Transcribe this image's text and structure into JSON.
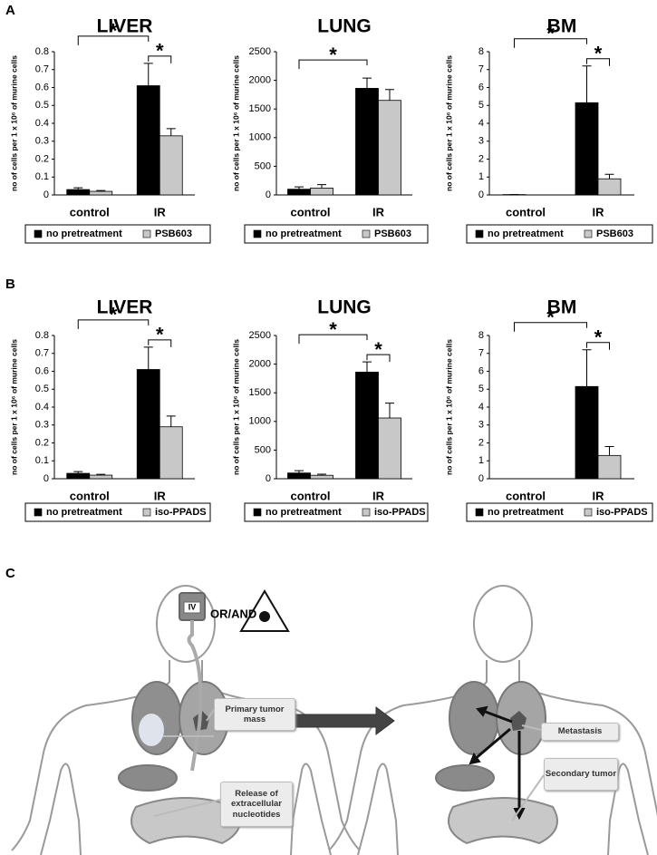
{
  "panels": [
    "A",
    "B",
    "C"
  ],
  "chart_data": [
    {
      "type": "bar",
      "title": "LIVER",
      "y_label": "no of cells per 1 x 10⁶ of murine cells",
      "categories": [
        "control",
        "IR"
      ],
      "series": [
        {
          "name": "no pretreatment",
          "color": "#000000",
          "values": [
            0.03,
            0.61
          ],
          "errors": [
            0.01,
            0.125
          ]
        },
        {
          "name": "PSB603",
          "color": "#c8c8c8",
          "values": [
            0.02,
            0.33
          ],
          "errors": [
            0.005,
            0.04
          ]
        }
      ],
      "ylim": [
        0,
        0.8
      ],
      "yticks": [
        0,
        0.1,
        0.2,
        0.3,
        0.4,
        0.5,
        0.6,
        0.7,
        0.8
      ],
      "annotations": [
        "*",
        "*"
      ]
    },
    {
      "type": "bar",
      "title": "LUNG",
      "y_label": "no of cells per 1 x 10⁶ of murine cells",
      "categories": [
        "control",
        "IR"
      ],
      "series": [
        {
          "name": "no pretreatment",
          "color": "#000000",
          "values": [
            100,
            1860
          ],
          "errors": [
            40,
            180
          ]
        },
        {
          "name": "PSB603",
          "color": "#c8c8c8",
          "values": [
            120,
            1650
          ],
          "errors": [
            60,
            190
          ]
        }
      ],
      "ylim": [
        0,
        2500
      ],
      "yticks": [
        0,
        500,
        1000,
        1500,
        2000,
        2500
      ],
      "annotations": [
        "*"
      ]
    },
    {
      "type": "bar",
      "title": "BM",
      "y_label": "no of cells per 1 x 10⁶ of murine cells",
      "categories": [
        "control",
        "IR"
      ],
      "series": [
        {
          "name": "no pretreatment",
          "color": "#000000",
          "values": [
            0.02,
            5.15
          ],
          "errors": [
            0,
            2.05
          ]
        },
        {
          "name": "PSB603",
          "color": "#c8c8c8",
          "values": [
            0,
            0.9
          ],
          "errors": [
            0,
            0.25
          ]
        }
      ],
      "ylim": [
        0,
        8
      ],
      "yticks": [
        0,
        1,
        2,
        3,
        4,
        5,
        6,
        7,
        8
      ],
      "annotations": [
        "*",
        "*"
      ]
    },
    {
      "type": "bar",
      "title": "LIVER",
      "y_label": "no of cells per 1 x 10⁶ of murine cells",
      "categories": [
        "control",
        "IR"
      ],
      "series": [
        {
          "name": "no pretreatment",
          "color": "#000000",
          "values": [
            0.03,
            0.61
          ],
          "errors": [
            0.01,
            0.125
          ]
        },
        {
          "name": "iso-PPADS",
          "color": "#c8c8c8",
          "values": [
            0.02,
            0.29
          ],
          "errors": [
            0.005,
            0.06
          ]
        }
      ],
      "ylim": [
        0,
        0.8
      ],
      "yticks": [
        0,
        0.1,
        0.2,
        0.3,
        0.4,
        0.5,
        0.6,
        0.7,
        0.8
      ],
      "annotations": [
        "*",
        "*"
      ]
    },
    {
      "type": "bar",
      "title": "LUNG",
      "y_label": "no of cells per 1 x 10⁶ of murine cells",
      "categories": [
        "control",
        "IR"
      ],
      "series": [
        {
          "name": "no pretreatment",
          "color": "#000000",
          "values": [
            100,
            1860
          ],
          "errors": [
            40,
            180
          ]
        },
        {
          "name": "iso-PPADS",
          "color": "#c8c8c8",
          "values": [
            60,
            1060
          ],
          "errors": [
            20,
            260
          ]
        }
      ],
      "ylim": [
        0,
        2500
      ],
      "yticks": [
        0,
        500,
        1000,
        1500,
        2000,
        2500
      ],
      "annotations": [
        "*",
        "*"
      ]
    },
    {
      "type": "bar",
      "title": "BM",
      "y_label": "no of cells per 1 x 10⁶ of murine cells",
      "categories": [
        "control",
        "IR"
      ],
      "series": [
        {
          "name": "no pretreatment",
          "color": "#000000",
          "values": [
            0,
            5.15
          ],
          "errors": [
            0,
            2.05
          ]
        },
        {
          "name": "iso-PPADS",
          "color": "#c8c8c8",
          "values": [
            0,
            1.3
          ],
          "errors": [
            0,
            0.5
          ]
        }
      ],
      "ylim": [
        0,
        8
      ],
      "yticks": [
        0,
        1,
        2,
        3,
        4,
        5,
        6,
        7,
        8
      ],
      "annotations": [
        "*",
        "*"
      ]
    }
  ],
  "diagram": {
    "iv": "IV",
    "or_and": "OR/AND",
    "labels": [
      "Primary tumor mass",
      "Release of extracellular nucleotides",
      "Metastasis",
      "Secondary tumor"
    ]
  }
}
